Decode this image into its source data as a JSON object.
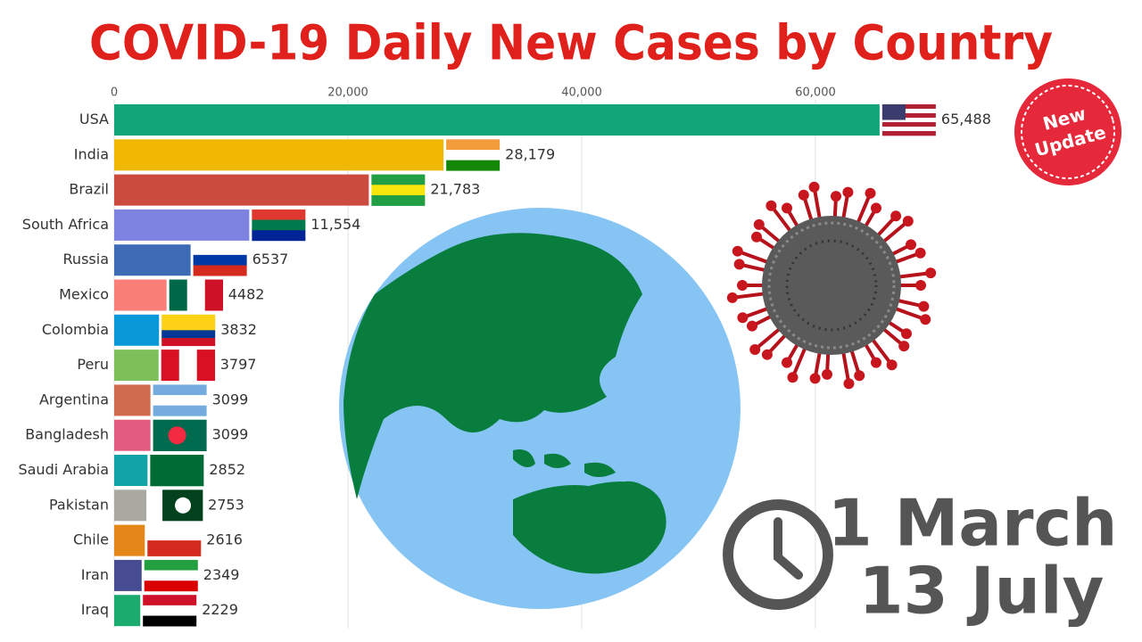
{
  "chart_data": {
    "type": "bar",
    "orientation": "horizontal",
    "title": "COVID-19 Daily New Cases by Country",
    "categories": [
      "USA",
      "India",
      "Brazil",
      "South Africa",
      "Russia",
      "Mexico",
      "Colombia",
      "Peru",
      "Argentina",
      "Bangladesh",
      "Saudi Arabia",
      "Pakistan",
      "Chile",
      "Iran",
      "Iraq"
    ],
    "values": [
      65488,
      28179,
      21783,
      11554,
      6537,
      4482,
      3832,
      3797,
      3099,
      3099,
      2852,
      2753,
      2616,
      2349,
      2229
    ],
    "value_labels": [
      "65,488",
      "28,179",
      "21,783",
      "11,554",
      "6537",
      "4482",
      "3832",
      "3797",
      "3099",
      "3099",
      "2852",
      "2753",
      "2616",
      "2349",
      "2229"
    ],
    "colors": [
      "#13a57a",
      "#f0b800",
      "#cc4b3f",
      "#7e82e0",
      "#3e6bb5",
      "#fb7f79",
      "#0a98d8",
      "#7ebf5a",
      "#cf6b4c",
      "#e35b7f",
      "#12a3a8",
      "#a9a9a1",
      "#e38719",
      "#474b91",
      "#1cab6e"
    ],
    "xlim": [
      0,
      70000
    ],
    "xticks": [
      0,
      {
        "value": 20000,
        "label": "20,000"
      },
      {
        "value": 40000,
        "label": "40,000"
      },
      {
        "value": 60000,
        "label": "60,000"
      }
    ],
    "grid": true
  },
  "badge": [
    "New",
    "Update"
  ],
  "dates": [
    "1 March",
    "13 July"
  ]
}
